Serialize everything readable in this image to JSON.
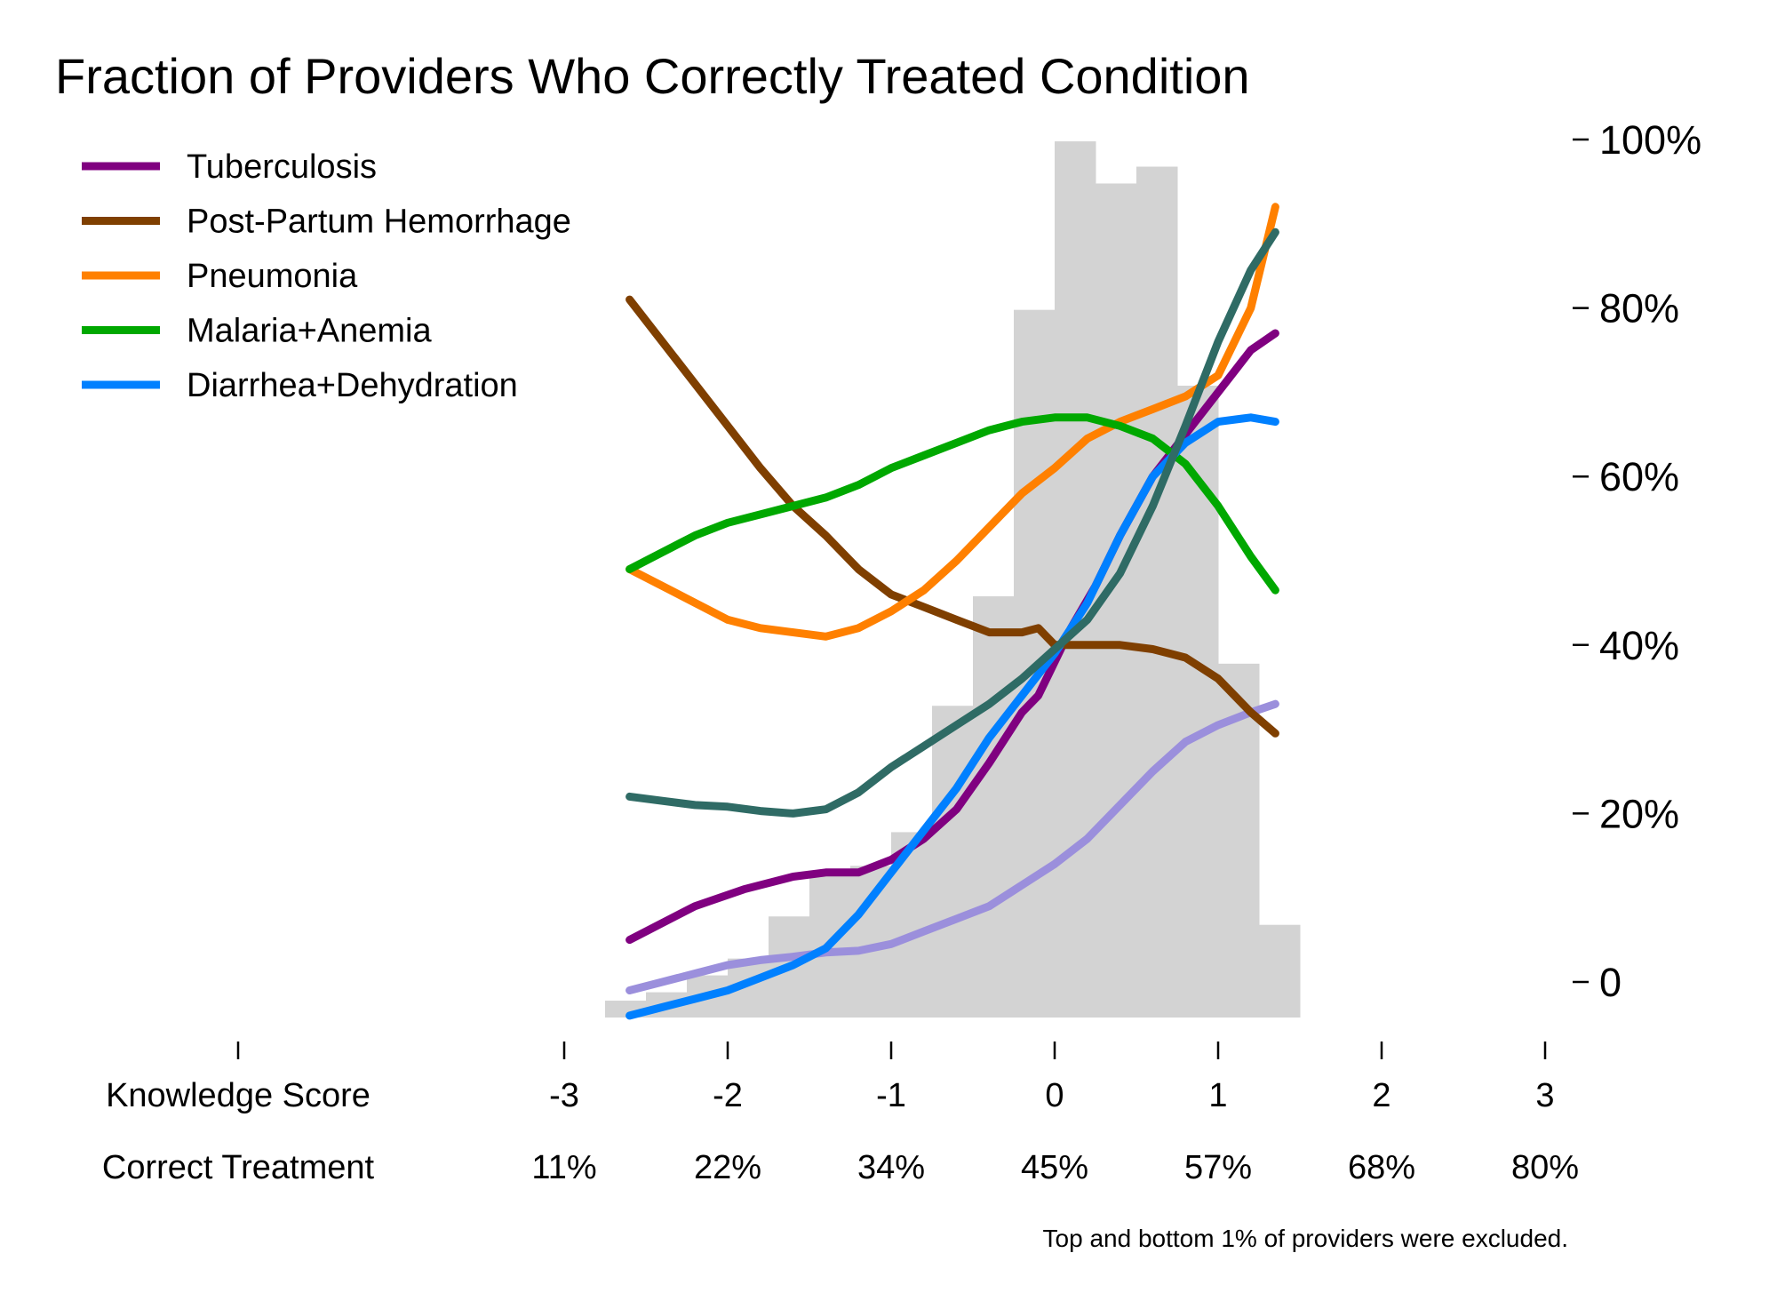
{
  "chart_data": {
    "type": "line",
    "title": "Fraction of Providers Who Correctly Treated Condition",
    "note": "Top and bottom 1% of providers were excluded.",
    "ylim": [
      0,
      100
    ],
    "y_ticks": [
      {
        "value": 100,
        "label": "100%"
      },
      {
        "value": 80,
        "label": "80%"
      },
      {
        "value": 60,
        "label": "60%"
      },
      {
        "value": 40,
        "label": "40%"
      },
      {
        "value": 20,
        "label": "20%"
      },
      {
        "value": 0,
        "label": "0"
      }
    ],
    "xlim": [
      -3,
      3
    ],
    "x_row_labels": {
      "score": "Knowledge Score",
      "treatment": "Correct Treatment"
    },
    "x_ticks": [
      {
        "value": -3,
        "score": "-3",
        "treatment": "11%"
      },
      {
        "value": -2,
        "score": "-2",
        "treatment": "22%"
      },
      {
        "value": -1,
        "score": "-1",
        "treatment": "34%"
      },
      {
        "value": 0,
        "score": "0",
        "treatment": "45%"
      },
      {
        "value": 1,
        "score": "1",
        "treatment": "57%"
      },
      {
        "value": 2,
        "score": "2",
        "treatment": "68%"
      },
      {
        "value": 3,
        "score": "3",
        "treatment": "80%"
      }
    ],
    "legend_position": "top-left",
    "histogram": {
      "color": "#d3d3d3",
      "bin_width": 0.25,
      "bins": [
        {
          "x0": -2.75,
          "height": 2
        },
        {
          "x0": -2.5,
          "height": 3
        },
        {
          "x0": -2.25,
          "height": 5
        },
        {
          "x0": -2.0,
          "height": 7
        },
        {
          "x0": -1.75,
          "height": 12
        },
        {
          "x0": -1.5,
          "height": 17
        },
        {
          "x0": -1.25,
          "height": 18
        },
        {
          "x0": -1.0,
          "height": 22
        },
        {
          "x0": -0.75,
          "height": 37
        },
        {
          "x0": -0.5,
          "height": 50
        },
        {
          "x0": -0.25,
          "height": 84
        },
        {
          "x0": 0.0,
          "height": 104
        },
        {
          "x0": 0.25,
          "height": 99
        },
        {
          "x0": 0.5,
          "height": 101
        },
        {
          "x0": 0.75,
          "height": 75
        },
        {
          "x0": 1.0,
          "height": 42
        },
        {
          "x0": 1.25,
          "height": 11
        }
      ]
    },
    "series": [
      {
        "name": "Tuberculosis",
        "color": "#800080",
        "points": [
          [
            -2.6,
            5
          ],
          [
            -2.2,
            9
          ],
          [
            -1.9,
            11
          ],
          [
            -1.6,
            12.5
          ],
          [
            -1.4,
            13
          ],
          [
            -1.2,
            13
          ],
          [
            -1.0,
            14.5
          ],
          [
            -0.8,
            17
          ],
          [
            -0.6,
            20.5
          ],
          [
            -0.4,
            26
          ],
          [
            -0.2,
            32
          ],
          [
            -0.1,
            34
          ],
          [
            0.0,
            38
          ],
          [
            0.1,
            42
          ],
          [
            0.25,
            47
          ],
          [
            0.4,
            53
          ],
          [
            0.6,
            60
          ],
          [
            0.8,
            65
          ],
          [
            1.0,
            70
          ],
          [
            1.2,
            75
          ],
          [
            1.35,
            77
          ]
        ]
      },
      {
        "name": "Post-Partum Hemorrhage",
        "color": "#7f3f00",
        "points": [
          [
            -2.6,
            81
          ],
          [
            -2.4,
            76
          ],
          [
            -2.2,
            71
          ],
          [
            -2.0,
            66
          ],
          [
            -1.8,
            61
          ],
          [
            -1.6,
            56.5
          ],
          [
            -1.4,
            53
          ],
          [
            -1.2,
            49
          ],
          [
            -1.0,
            46
          ],
          [
            -0.8,
            44.5
          ],
          [
            -0.6,
            43
          ],
          [
            -0.4,
            41.5
          ],
          [
            -0.2,
            41.5
          ],
          [
            -0.1,
            42
          ],
          [
            0.0,
            40
          ],
          [
            0.2,
            40
          ],
          [
            0.4,
            40
          ],
          [
            0.6,
            39.5
          ],
          [
            0.8,
            38.5
          ],
          [
            1.0,
            36
          ],
          [
            1.2,
            32
          ],
          [
            1.35,
            29.5
          ]
        ]
      },
      {
        "name": "Pneumonia",
        "color": "#ff8000",
        "points": [
          [
            -2.6,
            49
          ],
          [
            -2.4,
            47
          ],
          [
            -2.2,
            45
          ],
          [
            -2.0,
            43
          ],
          [
            -1.8,
            42
          ],
          [
            -1.6,
            41.5
          ],
          [
            -1.4,
            41
          ],
          [
            -1.2,
            42
          ],
          [
            -1.0,
            44
          ],
          [
            -0.8,
            46.5
          ],
          [
            -0.6,
            50
          ],
          [
            -0.4,
            54
          ],
          [
            -0.2,
            58
          ],
          [
            0.0,
            61
          ],
          [
            0.2,
            64.5
          ],
          [
            0.4,
            66.5
          ],
          [
            0.6,
            68
          ],
          [
            0.8,
            69.5
          ],
          [
            1.0,
            72
          ],
          [
            1.2,
            80
          ],
          [
            1.35,
            92
          ]
        ]
      },
      {
        "name": "Malaria+Anemia",
        "color": "#00a800",
        "points": [
          [
            -2.6,
            49
          ],
          [
            -2.4,
            51
          ],
          [
            -2.2,
            53
          ],
          [
            -2.0,
            54.5
          ],
          [
            -1.8,
            55.5
          ],
          [
            -1.6,
            56.5
          ],
          [
            -1.4,
            57.5
          ],
          [
            -1.2,
            59
          ],
          [
            -1.0,
            61
          ],
          [
            -0.8,
            62.5
          ],
          [
            -0.6,
            64
          ],
          [
            -0.4,
            65.5
          ],
          [
            -0.2,
            66.5
          ],
          [
            0.0,
            67
          ],
          [
            0.2,
            67
          ],
          [
            0.4,
            66
          ],
          [
            0.6,
            64.5
          ],
          [
            0.8,
            61.5
          ],
          [
            1.0,
            56.5
          ],
          [
            1.2,
            50.5
          ],
          [
            1.35,
            46.5
          ]
        ]
      },
      {
        "name": "Diarrhea+Dehydration",
        "color": "#0080ff",
        "points": [
          [
            -2.6,
            -4
          ],
          [
            -2.4,
            -3
          ],
          [
            -2.2,
            -2
          ],
          [
            -2.0,
            -1
          ],
          [
            -1.8,
            0.5
          ],
          [
            -1.6,
            2
          ],
          [
            -1.4,
            4
          ],
          [
            -1.2,
            8
          ],
          [
            -1.0,
            13
          ],
          [
            -0.8,
            18
          ],
          [
            -0.6,
            23
          ],
          [
            -0.4,
            29
          ],
          [
            -0.2,
            34
          ],
          [
            0.0,
            39
          ],
          [
            0.2,
            45
          ],
          [
            0.4,
            53
          ],
          [
            0.6,
            60
          ],
          [
            0.8,
            64
          ],
          [
            1.0,
            66.5
          ],
          [
            1.2,
            67
          ],
          [
            1.35,
            66.5
          ]
        ]
      },
      {
        "name": "",
        "color": "#2f6b65",
        "points": [
          [
            -2.6,
            22
          ],
          [
            -2.4,
            21.5
          ],
          [
            -2.2,
            21
          ],
          [
            -2.0,
            20.8
          ],
          [
            -1.8,
            20.3
          ],
          [
            -1.6,
            20
          ],
          [
            -1.4,
            20.5
          ],
          [
            -1.2,
            22.5
          ],
          [
            -1.0,
            25.5
          ],
          [
            -0.8,
            28
          ],
          [
            -0.6,
            30.5
          ],
          [
            -0.4,
            33
          ],
          [
            -0.2,
            36
          ],
          [
            0.0,
            39.5
          ],
          [
            0.2,
            43
          ],
          [
            0.4,
            48.5
          ],
          [
            0.6,
            56.5
          ],
          [
            0.8,
            66
          ],
          [
            1.0,
            76
          ],
          [
            1.2,
            84.5
          ],
          [
            1.35,
            89
          ]
        ]
      },
      {
        "name": "",
        "color": "#9b8fdc",
        "points": [
          [
            -2.6,
            -1
          ],
          [
            -2.4,
            0
          ],
          [
            -2.2,
            1
          ],
          [
            -2.0,
            2
          ],
          [
            -1.8,
            2.6
          ],
          [
            -1.6,
            3
          ],
          [
            -1.4,
            3.5
          ],
          [
            -1.2,
            3.7
          ],
          [
            -1.0,
            4.5
          ],
          [
            -0.8,
            6
          ],
          [
            -0.6,
            7.5
          ],
          [
            -0.4,
            9
          ],
          [
            -0.2,
            11.5
          ],
          [
            0.0,
            14
          ],
          [
            0.2,
            17
          ],
          [
            0.4,
            21
          ],
          [
            0.6,
            25
          ],
          [
            0.8,
            28.5
          ],
          [
            1.0,
            30.5
          ],
          [
            1.2,
            32
          ],
          [
            1.35,
            33
          ]
        ]
      }
    ]
  }
}
